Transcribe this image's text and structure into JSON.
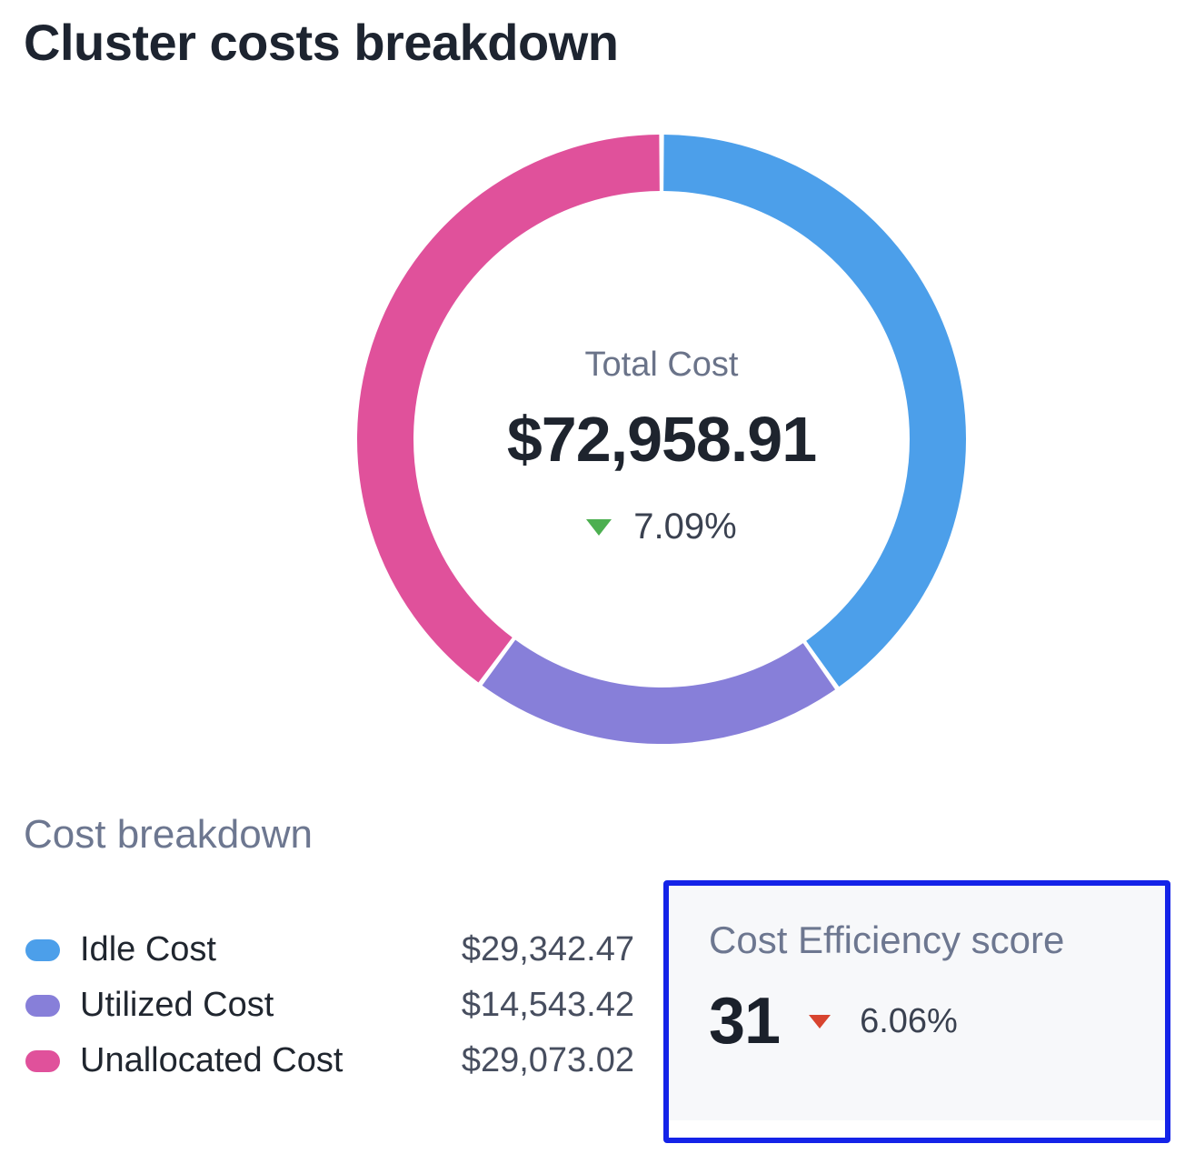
{
  "page": {
    "title": "Cluster costs breakdown"
  },
  "donut": {
    "center_label": "Total Cost",
    "center_value": "$72,958.91",
    "center_change": "7.09%",
    "center_change_direction": "down",
    "center_change_color": "#4caf50"
  },
  "breakdown": {
    "heading": "Cost breakdown",
    "items": [
      {
        "label": "Idle Cost",
        "value": "$29,342.47",
        "color": "#4c9fea"
      },
      {
        "label": "Utilized Cost",
        "value": "$14,543.42",
        "color": "#877fd9"
      },
      {
        "label": "Unallocated Cost",
        "value": "$29,073.02",
        "color": "#e0519b"
      }
    ]
  },
  "efficiency": {
    "heading": "Cost Efficiency score",
    "score": "31",
    "change": "6.06%",
    "change_direction": "down",
    "change_color": "#d8442f",
    "highlight_border_color": "#1423e8",
    "card_background": "#f7f8fa"
  },
  "chart_data": {
    "type": "pie",
    "donut": true,
    "title": "Cluster costs breakdown",
    "categories": [
      "Idle Cost",
      "Utilized Cost",
      "Unallocated Cost"
    ],
    "values": [
      29342.47,
      14543.42,
      29073.02
    ],
    "colors": [
      "#4c9fea",
      "#877fd9",
      "#e0519b"
    ],
    "center_label": "Total Cost",
    "center_total": 72958.91,
    "center_change_pct": -7.09,
    "start_angle_deg": 0,
    "direction": "clockwise",
    "gap_between_slices_deg": 0.9,
    "legend_position": "bottom-left"
  }
}
